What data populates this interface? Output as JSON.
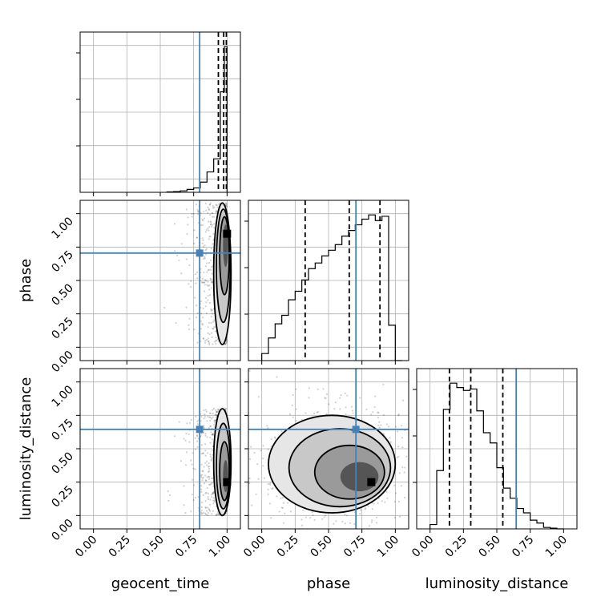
{
  "chart_data": {
    "type": "corner",
    "parameters": [
      "geocent_time",
      "phase",
      "luminosity_distance"
    ],
    "axis_labels": {
      "geocent_time": "geocent_time",
      "phase": "phase",
      "luminosity_distance": "luminosity_distance"
    },
    "ticks": [
      0.0,
      0.25,
      0.5,
      0.75,
      1.0
    ],
    "tick_labels": [
      "0.00",
      "0.25",
      "0.50",
      "0.75",
      "1.00"
    ],
    "axis_range": [
      -0.1,
      1.1
    ],
    "grid": true,
    "truth_color": "#4682b4",
    "truths": {
      "geocent_time": 0.795,
      "phase": 0.705,
      "luminosity_distance": 0.645
    },
    "quantiles": {
      "geocent_time": [
        0.935,
        0.975,
        0.995
      ],
      "phase": [
        0.325,
        0.655,
        0.885
      ],
      "luminosity_distance": [
        0.145,
        0.305,
        0.545
      ]
    },
    "histograms": {
      "geocent_time": {
        "bin_edges": [
          0.55,
          0.6,
          0.65,
          0.7,
          0.75,
          0.8,
          0.85,
          0.9,
          0.95,
          0.98,
          1.0
        ],
        "counts": [
          0.3,
          0.5,
          1,
          2,
          3,
          7,
          14,
          23,
          69,
          100
        ]
      },
      "phase": {
        "bin_edges": [
          0.0,
          0.05,
          0.1,
          0.15,
          0.2,
          0.25,
          0.3,
          0.35,
          0.4,
          0.45,
          0.5,
          0.55,
          0.6,
          0.65,
          0.7,
          0.75,
          0.8,
          0.85,
          0.9,
          0.95,
          1.0,
          1.05
        ],
        "counts": [
          5,
          16,
          26,
          32,
          43,
          49,
          57,
          65,
          69,
          74,
          78,
          82,
          88,
          92,
          96,
          100,
          103,
          99,
          102,
          25,
          0
        ]
      },
      "luminosity_distance": {
        "bin_edges": [
          0.0,
          0.05,
          0.1,
          0.15,
          0.2,
          0.25,
          0.3,
          0.35,
          0.4,
          0.45,
          0.5,
          0.55,
          0.6,
          0.65,
          0.7,
          0.75,
          0.8,
          0.85,
          0.9,
          0.95,
          1.0
        ],
        "counts": [
          3,
          40,
          82,
          100,
          97,
          95,
          96,
          81,
          66,
          59,
          42,
          28,
          21,
          14,
          11,
          6,
          4,
          1,
          0.5,
          0
        ]
      }
    },
    "density_2d": [
      {
        "x": "geocent_time",
        "y": "phase",
        "core": {
          "x": [
            0.9,
            1.03
          ],
          "y": [
            0.02,
            1.08
          ]
        },
        "peak": {
          "x": 1.0,
          "y": 0.85
        }
      },
      {
        "x": "geocent_time",
        "y": "luminosity_distance",
        "core": {
          "x": [
            0.9,
            1.03
          ],
          "y": [
            0.0,
            0.8
          ]
        },
        "peak": {
          "x": 1.0,
          "y": 0.25
        }
      },
      {
        "x": "phase",
        "y": "luminosity_distance",
        "core": {
          "x": [
            0.05,
            1.0
          ],
          "y": [
            0.02,
            0.75
          ]
        },
        "peak": {
          "x": 0.82,
          "y": 0.25
        }
      }
    ]
  }
}
